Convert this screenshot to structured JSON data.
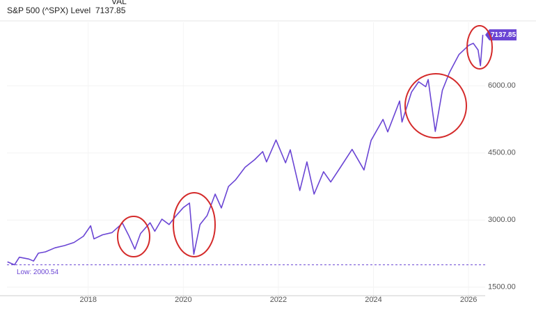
{
  "chart_data": {
    "type": "line",
    "title": "S&P 500 (^SPX) Level",
    "value_header": "VAL",
    "current": 7137.85,
    "color": "#6a45d4",
    "low": {
      "value": 2000.54,
      "label": "Low: 2000.54"
    },
    "x": [
      2016.3,
      2016.45,
      2016.55,
      2016.75,
      2016.85,
      2016.95,
      2017.1,
      2017.3,
      2017.5,
      2017.7,
      2017.9,
      2018.05,
      2018.12,
      2018.3,
      2018.5,
      2018.72,
      2018.85,
      2018.98,
      2019.1,
      2019.3,
      2019.4,
      2019.55,
      2019.7,
      2019.85,
      2020.0,
      2020.13,
      2020.22,
      2020.35,
      2020.5,
      2020.67,
      2020.8,
      2020.95,
      2021.1,
      2021.3,
      2021.5,
      2021.67,
      2021.75,
      2021.95,
      2022.15,
      2022.25,
      2022.45,
      2022.6,
      2022.75,
      2022.95,
      2023.1,
      2023.3,
      2023.55,
      2023.8,
      2023.95,
      2024.2,
      2024.3,
      2024.55,
      2024.6,
      2024.8,
      2024.95,
      2025.1,
      2025.15,
      2025.3,
      2025.45,
      2025.6,
      2025.8,
      2026.0,
      2026.1,
      2026.2,
      2026.25,
      2026.3
    ],
    "values": [
      2065,
      2000.54,
      2170,
      2130,
      2085,
      2260,
      2290,
      2380,
      2430,
      2500,
      2640,
      2872,
      2580,
      2670,
      2720,
      2930,
      2660,
      2350,
      2700,
      2940,
      2750,
      3020,
      2900,
      3100,
      3280,
      3380,
      2237,
      2900,
      3100,
      3580,
      3270,
      3750,
      3900,
      4180,
      4350,
      4530,
      4300,
      4790,
      4280,
      4570,
      3660,
      4300,
      3580,
      4080,
      3850,
      4170,
      4580,
      4120,
      4780,
      5250,
      4970,
      5660,
      5190,
      5860,
      6090,
      5980,
      6140,
      4980,
      5900,
      6300,
      6700,
      6900,
      6950,
      6800,
      6450,
      7137.85
    ],
    "xlim": [
      2016.29,
      2026.35
    ],
    "ylim": [
      1310,
      7420
    ],
    "xticks": [
      2018,
      2020,
      2022,
      2024,
      2026
    ],
    "yticks": [
      {
        "value": 1500,
        "label": "1500.00"
      },
      {
        "value": 3000,
        "label": "3000.00"
      },
      {
        "value": 4500,
        "label": "4500.00"
      },
      {
        "value": 6000,
        "label": "6000.00"
      }
    ],
    "grid": true
  }
}
